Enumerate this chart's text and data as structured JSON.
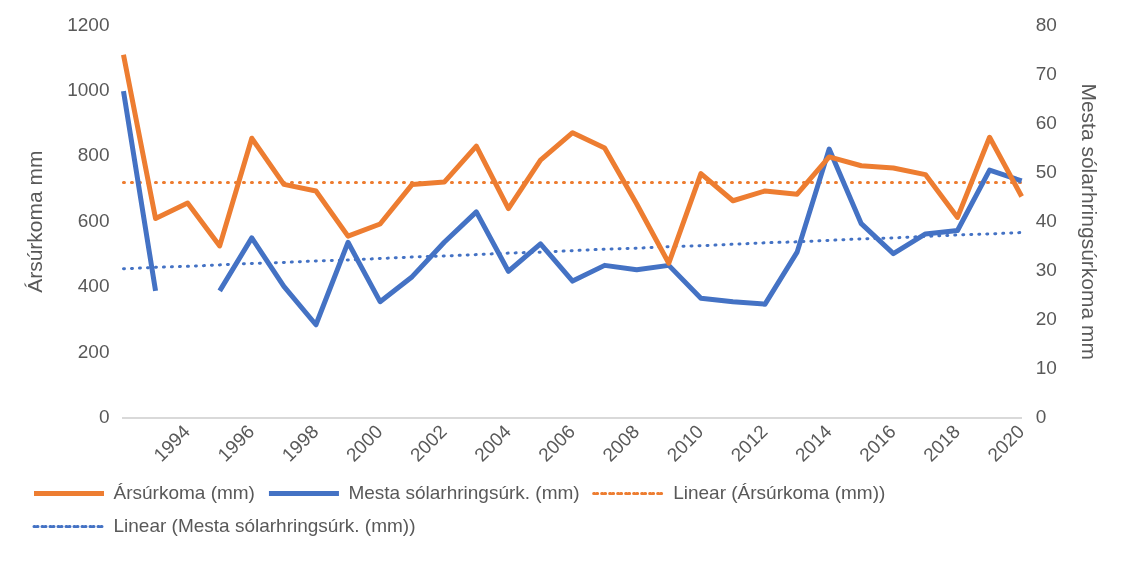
{
  "chart_data": {
    "type": "line",
    "ylabel": "Ársúrkoma mm",
    "y2label": "Mesta sólarhringsúrkoma mm",
    "categories": [
      null,
      null,
      "1994",
      null,
      "1996",
      null,
      "1998",
      null,
      "2000",
      null,
      "2002",
      null,
      "2004",
      null,
      "2006",
      null,
      "2008",
      null,
      "2010",
      null,
      "2012",
      null,
      "2014",
      null,
      "2016",
      null,
      "2018",
      null,
      "2020"
    ],
    "ylim": [
      0,
      1200
    ],
    "yticks": [
      0,
      200,
      400,
      600,
      800,
      1000,
      1200
    ],
    "y2lim": [
      0,
      80
    ],
    "y2ticks": [
      0,
      10,
      20,
      30,
      40,
      50,
      60,
      70,
      80
    ],
    "grid": false,
    "legend": "bottom",
    "marker": "none",
    "series": [
      {
        "name": "Ársúrkoma (mm)",
        "color": "#ed7d31",
        "line_style": "solid",
        "values": [
          1110,
          610,
          657,
          526,
          855,
          714,
          694,
          556,
          593,
          714,
          721,
          831,
          640,
          788,
          872,
          825,
          654,
          473,
          747,
          664,
          694,
          684,
          798,
          771,
          764,
          744,
          613,
          858,
          677
        ]
      },
      {
        "name": "Mesta sólarhringsúrk. (mm)",
        "color": "#4472c4",
        "line_style": "solid",
        "axis": "y2",
        "values": [
          66.6,
          25.9,
          null,
          25.9,
          36.7,
          26.8,
          19.0,
          35.8,
          23.7,
          28.8,
          35.8,
          42.0,
          29.9,
          35.5,
          27.9,
          31.1,
          30.2,
          31.1,
          24.4,
          23.7,
          23.2,
          33.8,
          54.8,
          39.6,
          33.5,
          37.5,
          38.2,
          50.5,
          48.3
        ]
      },
      {
        "name": "Linear (Ársúrkoma (mm))",
        "color": "#ed7d31",
        "line_style": "dotted",
        "values": [
          720,
          720,
          720,
          720,
          720,
          720,
          720,
          720,
          720,
          720,
          720,
          720,
          720,
          720,
          720,
          720,
          720,
          720,
          720,
          720,
          720,
          720,
          720,
          720,
          720,
          720,
          720,
          720,
          720
        ]
      },
      {
        "name": "Linear (Mesta sólarhringsúrk. (mm))",
        "color": "#4472c4",
        "line_style": "dotted",
        "axis": "y2",
        "values": [
          30.4,
          30.7,
          30.9,
          31.2,
          31.5,
          31.7,
          32.0,
          32.2,
          32.5,
          32.8,
          33.0,
          33.3,
          33.6,
          33.8,
          34.1,
          34.4,
          34.6,
          34.9,
          35.1,
          35.4,
          35.7,
          35.9,
          36.2,
          36.5,
          36.7,
          37.0,
          37.3,
          37.5,
          37.8
        ]
      }
    ]
  }
}
